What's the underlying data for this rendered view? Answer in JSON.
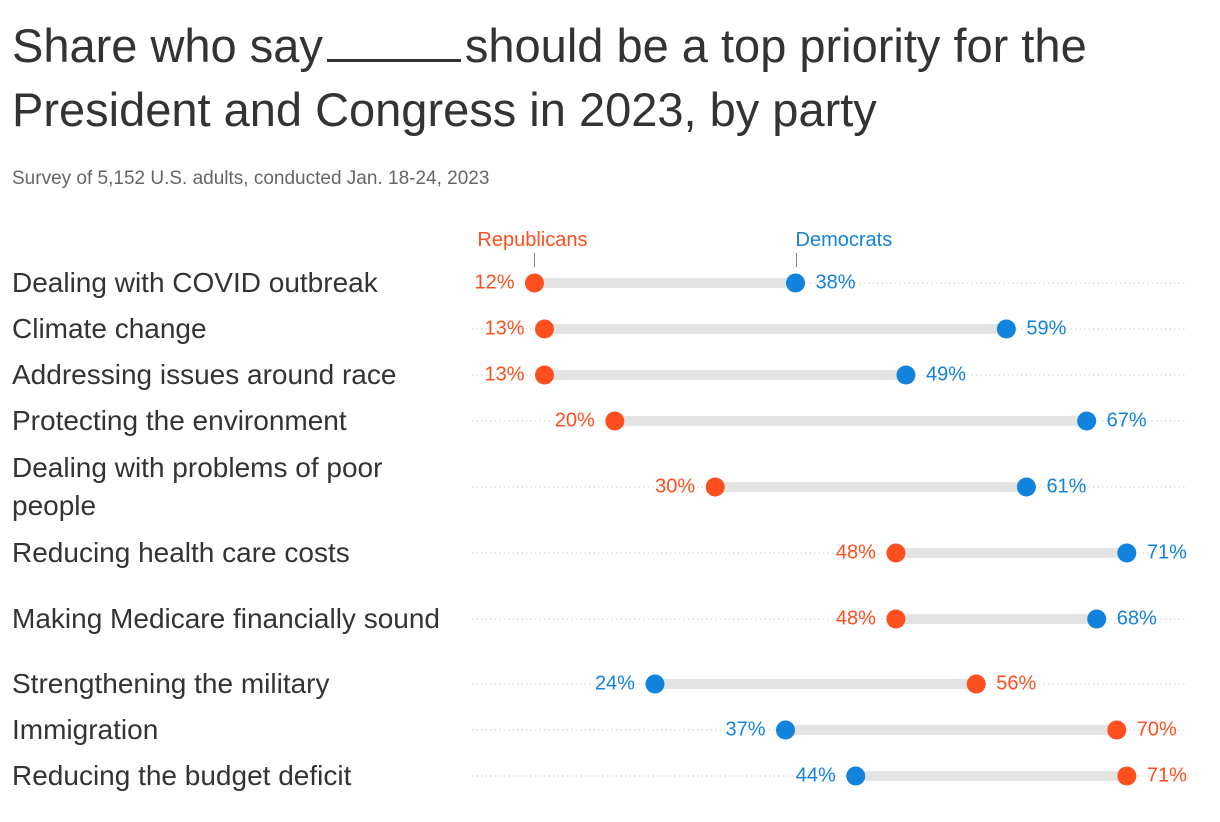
{
  "title_before": "Share who say",
  "title_after": "should be a top priority for the President and Congress in 2023, by party",
  "subtitle": "Survey of 5,152 U.S. adults, conducted Jan. 18-24, 2023",
  "chart_data": {
    "type": "dumbbell",
    "xlim": [
      0,
      77
    ],
    "colors": {
      "Republicans": "#ff4f1f",
      "Democrats": "#1283dd",
      "track": "#e3e3e3"
    },
    "legend": {
      "rep": "Republicans",
      "dem": "Democrats"
    },
    "categories": [
      "Dealing with COVID outbreak",
      "Climate change",
      "Addressing issues around race",
      "Protecting the environment",
      "Dealing with problems of poor people",
      "Reducing health care costs",
      "Making Medicare financially sound",
      "Strengthening the military",
      "Immigration",
      "Reducing the budget deficit"
    ],
    "series": [
      {
        "name": "Republicans",
        "values": [
          12,
          13,
          13,
          20,
          30,
          48,
          48,
          56,
          70,
          71
        ]
      },
      {
        "name": "Democrats",
        "values": [
          38,
          59,
          49,
          67,
          61,
          71,
          68,
          24,
          37,
          44
        ]
      }
    ]
  }
}
